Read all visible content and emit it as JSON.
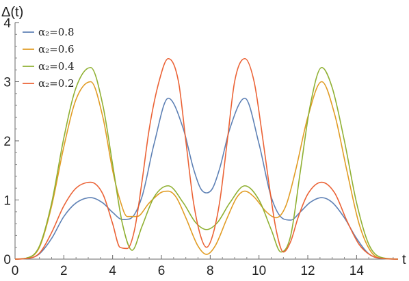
{
  "chart_data": {
    "type": "line",
    "ylabel": "Δ(t)",
    "xlabel": "t",
    "xlim": [
      0,
      15.7
    ],
    "ylim": [
      0,
      4
    ],
    "x_ticks": [
      0,
      2,
      4,
      6,
      8,
      10,
      12,
      14
    ],
    "y_ticks": [
      0,
      1,
      2,
      3,
      4
    ],
    "grid": false,
    "legend_position": "top-left",
    "series": [
      {
        "name": "α₂=0.8",
        "color": "#5e81b5",
        "x": [
          0,
          0.5,
          1.0,
          1.5,
          2.0,
          2.5,
          3.1,
          3.6,
          4.0,
          4.4,
          4.7,
          5.2,
          5.7,
          6.28,
          6.9,
          7.3,
          7.6,
          7.85,
          8.1,
          8.4,
          8.8,
          9.42,
          10.0,
          10.5,
          11.0,
          11.3,
          11.7,
          12.1,
          12.57,
          13.0,
          13.5,
          14.0,
          14.5,
          15.0,
          15.7
        ],
        "y": [
          0,
          0.01,
          0.09,
          0.35,
          0.72,
          0.95,
          1.04,
          0.95,
          0.79,
          0.67,
          0.68,
          1.05,
          1.95,
          2.72,
          2.2,
          1.55,
          1.2,
          1.12,
          1.2,
          1.55,
          2.2,
          2.72,
          1.95,
          1.05,
          0.68,
          0.66,
          0.8,
          0.96,
          1.04,
          0.96,
          0.7,
          0.35,
          0.09,
          0.01,
          0
        ]
      },
      {
        "name": "α₂=0.6",
        "color": "#e19c24",
        "x": [
          0,
          0.5,
          1.0,
          1.5,
          2.0,
          2.5,
          3.1,
          3.6,
          4.0,
          4.3,
          4.6,
          5.0,
          5.5,
          6.0,
          6.28,
          6.6,
          7.0,
          7.5,
          7.85,
          8.2,
          8.7,
          9.1,
          9.42,
          9.8,
          10.3,
          10.7,
          11.1,
          11.5,
          12.0,
          12.57,
          13.1,
          13.6,
          14.1,
          14.6,
          15.1,
          15.7
        ],
        "y": [
          0,
          0.02,
          0.2,
          0.9,
          1.9,
          2.7,
          3.0,
          2.4,
          1.5,
          1.0,
          0.72,
          0.72,
          0.95,
          1.13,
          1.15,
          1.05,
          0.7,
          0.22,
          0.08,
          0.22,
          0.7,
          1.05,
          1.15,
          1.05,
          0.8,
          0.7,
          0.9,
          1.5,
          2.4,
          3.0,
          2.45,
          1.5,
          0.6,
          0.12,
          0.01,
          0
        ]
      },
      {
        "name": "α₂=0.4",
        "color": "#8fb032",
        "x": [
          0,
          0.5,
          1.0,
          1.5,
          2.0,
          2.5,
          3.1,
          3.6,
          4.0,
          4.4,
          4.8,
          5.2,
          5.7,
          6.28,
          6.9,
          7.4,
          7.85,
          8.3,
          8.8,
          9.42,
          10.0,
          10.5,
          10.9,
          11.3,
          11.7,
          12.1,
          12.57,
          13.0,
          13.5,
          14.0,
          14.5,
          15.0,
          15.7
        ],
        "y": [
          0,
          0.02,
          0.22,
          0.95,
          2.05,
          2.9,
          3.24,
          2.6,
          1.6,
          0.6,
          0.15,
          0.55,
          1.05,
          1.24,
          0.95,
          0.62,
          0.5,
          0.62,
          0.95,
          1.24,
          1.0,
          0.5,
          0.12,
          0.4,
          1.5,
          2.6,
          3.24,
          2.9,
          2.0,
          0.95,
          0.25,
          0.03,
          0
        ]
      },
      {
        "name": "α₂=0.2",
        "color": "#eb6235",
        "x": [
          0,
          0.5,
          1.0,
          1.5,
          2.0,
          2.5,
          3.1,
          3.6,
          4.0,
          4.3,
          4.6,
          4.9,
          5.2,
          5.5,
          5.9,
          6.28,
          6.7,
          7.0,
          7.3,
          7.6,
          7.85,
          8.1,
          8.4,
          8.7,
          9.0,
          9.42,
          9.8,
          10.1,
          10.4,
          10.7,
          11.0,
          11.3,
          11.6,
          12.0,
          12.57,
          13.1,
          13.6,
          14.1,
          14.6,
          15.1,
          15.7
        ],
        "y": [
          0,
          0.01,
          0.1,
          0.45,
          0.9,
          1.2,
          1.3,
          1.1,
          0.6,
          0.2,
          0.18,
          0.5,
          1.3,
          2.2,
          3.0,
          3.39,
          3.0,
          2.0,
          1.0,
          0.4,
          0.2,
          0.4,
          1.0,
          2.0,
          3.0,
          3.39,
          3.0,
          2.2,
          1.3,
          0.5,
          0.12,
          0.3,
          0.7,
          1.1,
          1.3,
          1.12,
          0.65,
          0.25,
          0.06,
          0.01,
          0
        ]
      }
    ]
  }
}
